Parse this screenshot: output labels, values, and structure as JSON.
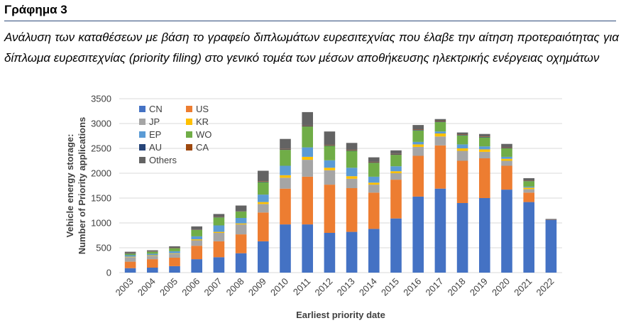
{
  "header": {
    "figure_label": "Γράφημα 3",
    "caption": "Ανάλυση των καταθέσεων με βάση το γραφείο διπλωμάτων ευρεσιτεχνίας που έλαβε την αίτηση προτεραιότητας για δίπλωμα ευρεσιτεχνίας (priority filing) στο γενικό τομέα των μέσων αποθήκευσης ηλεκτρικής ενέργειας οχημάτων"
  },
  "chart_data": {
    "type": "bar",
    "stacked": true,
    "xlabel": "Earliest priority date",
    "ylabel": "Vehicle energy storage:",
    "ylabel2": "Number of Priority applications",
    "ylim": [
      0,
      3500
    ],
    "yticks": [
      0,
      500,
      1000,
      1500,
      2000,
      2500,
      3000,
      3500
    ],
    "grid": true,
    "legend_position": "top-left",
    "categories": [
      "2003",
      "2004",
      "2005",
      "2006",
      "2007",
      "2008",
      "2009",
      "2010",
      "2011",
      "2012",
      "2013",
      "2014",
      "2015",
      "2016",
      "2017",
      "2018",
      "2019",
      "2020",
      "2021",
      "2022"
    ],
    "series": [
      {
        "name": "CN",
        "color": "#4472c4",
        "values": [
          90,
          100,
          130,
          270,
          310,
          390,
          630,
          970,
          970,
          800,
          820,
          880,
          1090,
          1530,
          1690,
          1400,
          1500,
          1670,
          1420,
          1060
        ]
      },
      {
        "name": "US",
        "color": "#ed7d31",
        "values": [
          130,
          170,
          170,
          270,
          320,
          380,
          580,
          720,
          960,
          970,
          880,
          730,
          780,
          820,
          870,
          850,
          800,
          480,
          190,
          0
        ]
      },
      {
        "name": "JP",
        "color": "#a5a5a5",
        "values": [
          90,
          70,
          80,
          110,
          170,
          200,
          170,
          220,
          340,
          290,
          190,
          160,
          130,
          180,
          180,
          200,
          130,
          100,
          70,
          0
        ]
      },
      {
        "name": "KR",
        "color": "#ffc000",
        "values": [
          10,
          10,
          10,
          20,
          20,
          20,
          40,
          50,
          60,
          50,
          50,
          40,
          40,
          50,
          60,
          50,
          50,
          40,
          30,
          0
        ]
      },
      {
        "name": "EP",
        "color": "#5b9bd5",
        "values": [
          30,
          30,
          40,
          60,
          130,
          110,
          150,
          190,
          190,
          150,
          170,
          120,
          100,
          50,
          40,
          80,
          60,
          40,
          20,
          0
        ]
      },
      {
        "name": "WO",
        "color": "#70ad47",
        "values": [
          30,
          40,
          60,
          130,
          160,
          130,
          250,
          320,
          420,
          290,
          340,
          280,
          230,
          230,
          190,
          180,
          180,
          170,
          110,
          0
        ]
      },
      {
        "name": "AU",
        "color": "#264478",
        "values": [
          5,
          5,
          5,
          5,
          5,
          5,
          10,
          10,
          10,
          10,
          10,
          10,
          10,
          10,
          10,
          10,
          10,
          10,
          5,
          5
        ]
      },
      {
        "name": "CA",
        "color": "#9e480e",
        "values": [
          5,
          5,
          5,
          5,
          5,
          5,
          10,
          10,
          10,
          10,
          10,
          10,
          10,
          10,
          10,
          10,
          10,
          10,
          5,
          5
        ]
      },
      {
        "name": "Others",
        "color": "#636363",
        "values": [
          30,
          20,
          30,
          60,
          60,
          110,
          210,
          200,
          270,
          270,
          140,
          90,
          70,
          90,
          40,
          40,
          50,
          70,
          50,
          10
        ]
      }
    ]
  }
}
